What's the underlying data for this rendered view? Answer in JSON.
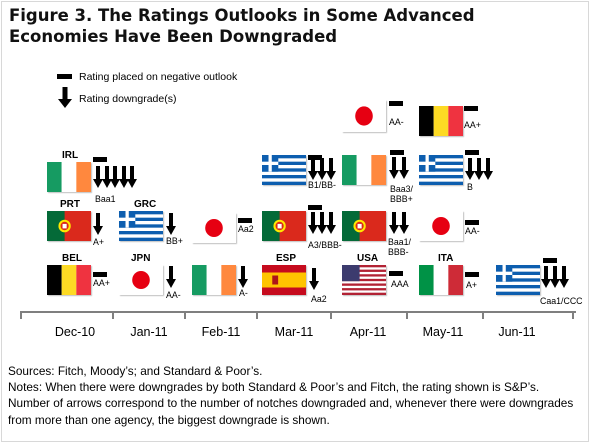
{
  "title": "Figure 3. The Ratings Outlooks in Some Advanced Economies Have Been Downgraded",
  "legend": {
    "negative_outlook": "Rating placed on negative outlook",
    "downgrade": "Rating downgrade(s)"
  },
  "chart_data": {
    "type": "table",
    "x_categories": [
      "Dec-10",
      "Jan-11",
      "Feb-11",
      "Mar-11",
      "Apr-11",
      "May-11",
      "Jun-11"
    ],
    "events": [
      {
        "country": "IRL",
        "flag": "ireland",
        "month": "Dec-10",
        "downgrades": 5,
        "negative_outlook": true,
        "rating": "Baa1"
      },
      {
        "country": "PRT",
        "flag": "portugal",
        "month": "Dec-10",
        "downgrades": 1,
        "negative_outlook": false,
        "rating": "A+"
      },
      {
        "country": "BEL",
        "flag": "belgium",
        "month": "Dec-10",
        "downgrades": 0,
        "negative_outlook": true,
        "rating": "AA+"
      },
      {
        "country": "GRC",
        "flag": "greece",
        "month": "Jan-11",
        "downgrades": 1,
        "negative_outlook": false,
        "rating": "BB+"
      },
      {
        "country": "JPN",
        "flag": "japan",
        "month": "Jan-11",
        "downgrades": 1,
        "negative_outlook": false,
        "rating": "AA-"
      },
      {
        "country": "",
        "flag": "japan",
        "month": "Feb-11",
        "downgrades": 0,
        "negative_outlook": true,
        "rating": "Aa2"
      },
      {
        "country": "",
        "flag": "ireland",
        "month": "Feb-11",
        "downgrades": 1,
        "negative_outlook": false,
        "rating": "A-"
      },
      {
        "country": "",
        "flag": "greece",
        "month": "Mar-11",
        "downgrades": 3,
        "negative_outlook": true,
        "rating": "B1/BB-"
      },
      {
        "country": "",
        "flag": "portugal",
        "month": "Mar-11",
        "downgrades": 3,
        "negative_outlook": true,
        "rating": "A3/BBB-"
      },
      {
        "country": "ESP",
        "flag": "spain",
        "month": "Mar-11",
        "downgrades": 1,
        "negative_outlook": false,
        "rating": "Aa2"
      },
      {
        "country": "",
        "flag": "japan",
        "month": "Apr-11",
        "downgrades": 0,
        "negative_outlook": true,
        "rating": "AA-"
      },
      {
        "country": "",
        "flag": "ireland",
        "month": "Apr-11",
        "downgrades": 2,
        "negative_outlook": true,
        "rating": "Baa3/ BBB+"
      },
      {
        "country": "",
        "flag": "portugal",
        "month": "Apr-11",
        "downgrades": 2,
        "negative_outlook": false,
        "rating": "Baa1/ BBB-"
      },
      {
        "country": "USA",
        "flag": "usa",
        "month": "Apr-11",
        "downgrades": 0,
        "negative_outlook": true,
        "rating": "AAA"
      },
      {
        "country": "",
        "flag": "belgium",
        "month": "May-11",
        "downgrades": 0,
        "negative_outlook": true,
        "rating": "AA+"
      },
      {
        "country": "",
        "flag": "greece",
        "month": "May-11",
        "downgrades": 3,
        "negative_outlook": true,
        "rating": "B"
      },
      {
        "country": "",
        "flag": "japan",
        "month": "May-11",
        "downgrades": 0,
        "negative_outlook": true,
        "rating": "AA-"
      },
      {
        "country": "ITA",
        "flag": "italy",
        "month": "May-11",
        "downgrades": 0,
        "negative_outlook": true,
        "rating": "A+"
      },
      {
        "country": "",
        "flag": "greece",
        "month": "Jun-11",
        "downgrades": 3,
        "negative_outlook": true,
        "rating": "Caa1/CCC"
      }
    ]
  },
  "sources": "Sources: Fitch, Moody’s; and Standard & Poor’s.",
  "notes": "Notes: When there were downgrades by both Standard & Poor’s and Fitch, the rating shown is S&P’s. Number of arrows correspond to the number of notches downgraded and, whenever there were downgrades from more than one agency, the biggest downgrade is shown."
}
